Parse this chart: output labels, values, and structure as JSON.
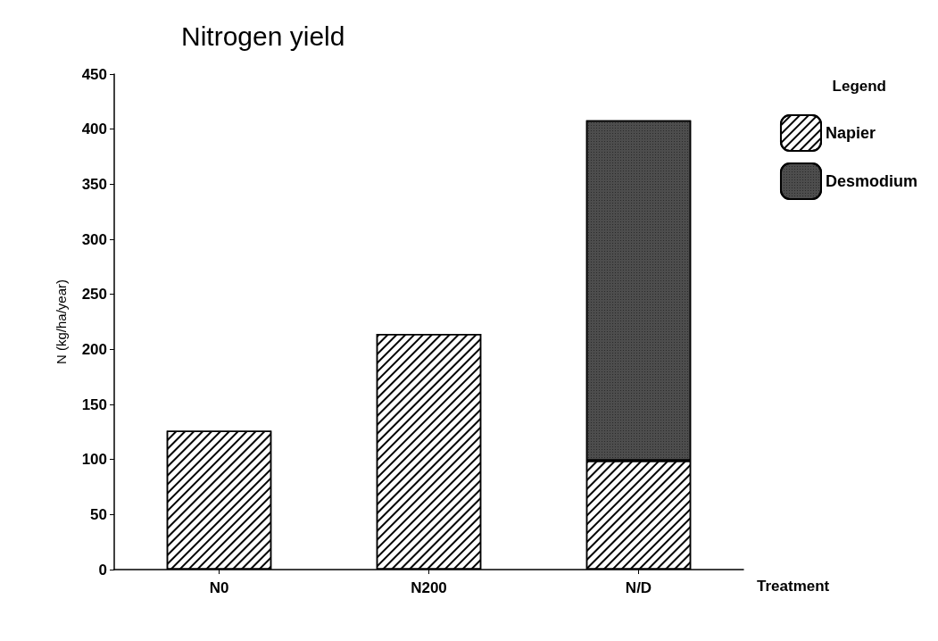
{
  "chart_data": {
    "type": "bar",
    "title": "Nitrogen yield",
    "xlabel": "Treatment",
    "ylabel": "N (kg/ha/year)",
    "legend_title": "Legend",
    "categories": [
      "N0",
      "N200",
      "N/D"
    ],
    "series": [
      {
        "name": "Napier",
        "color": "#ffffff",
        "values": [
          126,
          214,
          99
        ]
      },
      {
        "name": "Desmodium",
        "color": "#4d4d4d",
        "values": [
          null,
          null,
          309
        ]
      }
    ],
    "stacked": true,
    "ylim": [
      0,
      450
    ],
    "yticks": [
      0,
      50,
      100,
      150,
      200,
      250,
      300,
      350,
      400,
      450
    ],
    "grid": false,
    "legend": "top right"
  }
}
